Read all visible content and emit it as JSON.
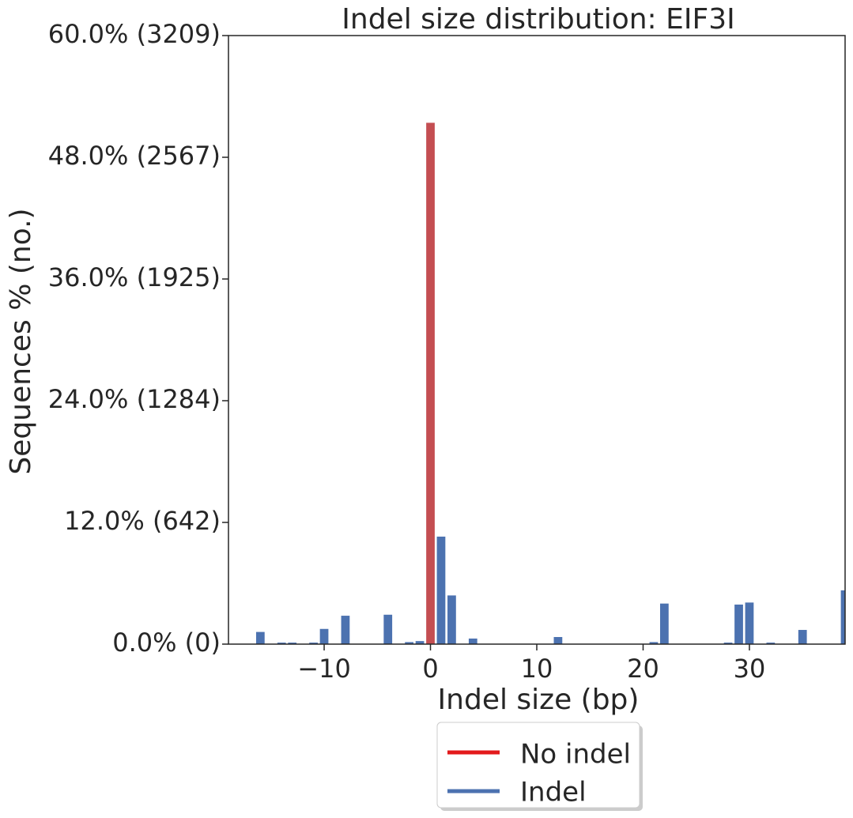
{
  "chart_data": {
    "type": "bar",
    "title": "Indel size distribution: EIF3I",
    "xlabel": "Indel size (bp)",
    "ylabel": "Sequences % (no.)",
    "xlim": [
      -19,
      39
    ],
    "ylim": [
      0,
      60
    ],
    "x_ticks": [
      -10,
      0,
      10,
      20,
      30
    ],
    "x_tick_labels": [
      "−10",
      "0",
      "10",
      "20",
      "30"
    ],
    "y_ticks": [
      0,
      12,
      24,
      36,
      48,
      60
    ],
    "y_tick_labels": [
      "0.0% (0)",
      "12.0% (642)",
      "24.0% (1284)",
      "36.0% (1925)",
      "48.0% (2567)",
      "60.0% (3209)"
    ],
    "grid": false,
    "legend_position": "below",
    "colors": {
      "no_indel": "#c44e52",
      "indel": "#4c72b0",
      "legend_no_indel": "#e31a1c"
    },
    "series": [
      {
        "name": "No indel",
        "x": [
          0
        ],
        "values": [
          51.4
        ]
      },
      {
        "name": "Indel",
        "x": [
          -16,
          -14,
          -13,
          -11,
          -10,
          -8,
          -4,
          -2,
          -1,
          1,
          2,
          4,
          12,
          21,
          22,
          28,
          29,
          30,
          32,
          35,
          39
        ],
        "values": [
          1.2,
          0.15,
          0.15,
          0.15,
          1.5,
          2.8,
          2.9,
          0.2,
          0.3,
          10.6,
          4.8,
          0.55,
          0.7,
          0.2,
          4.0,
          0.15,
          3.9,
          4.1,
          0.15,
          1.4,
          5.3
        ]
      }
    ]
  }
}
